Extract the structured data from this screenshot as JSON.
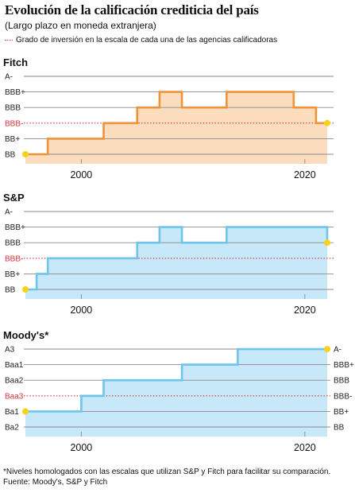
{
  "title": "Evolución de la calificación crediticia del país",
  "subtitle": "(Largo plazo en moneda extranjera)",
  "legend": "Grado de inversión en la escala de cada una de las agencias calificadoras",
  "footnote": {
    "line1": "*Niveles homologados con las escalas que utilizan S&P y Fitch para facilitar su comparación.",
    "line2": "Fuente: Moody's, S&P y Fitch"
  },
  "colors": {
    "fitch_line": "#f0923a",
    "fitch_fill": "#fbdcbd",
    "sp_line": "#6ec4ea",
    "sp_fill": "#c6e8f8",
    "moodys_line": "#6ec4ea",
    "moodys_fill": "#c6e8f8",
    "investment_grade": "#d6333b",
    "endpoint": "#f6d31a",
    "gridline": "#8a8a8a"
  },
  "chart_data": [
    {
      "type": "line",
      "step": true,
      "agency": "Fitch",
      "title": "Fitch",
      "categories": [
        "BB",
        "BB+",
        "BBB-",
        "BBB",
        "BBB+",
        "A-"
      ],
      "investment_grade_threshold": "BBB-",
      "xlim": [
        1995,
        2022
      ],
      "xticks": [
        "2000",
        "2020"
      ],
      "x": [
        1995,
        1997,
        2000,
        2002,
        2005,
        2007,
        2009,
        2013,
        2019,
        2021,
        2022
      ],
      "y": [
        "BB",
        "BB+",
        "BB+",
        "BBB-",
        "BBB",
        "BBB+",
        "BBB",
        "BBB+",
        "BBB",
        "BBB-",
        "BBB-"
      ]
    },
    {
      "type": "line",
      "step": true,
      "agency": "S&P",
      "title": "S&P",
      "categories": [
        "BB",
        "BB+",
        "BBB-",
        "BBB",
        "BBB+",
        "A-"
      ],
      "investment_grade_threshold": "BBB-",
      "xlim": [
        1995,
        2022
      ],
      "xticks": [
        "2000",
        "2020"
      ],
      "x": [
        1995,
        1996,
        1997,
        2002,
        2005,
        2007,
        2009,
        2013,
        2022
      ],
      "y": [
        "BB",
        "BB+",
        "BBB-",
        "BBB-",
        "BBB",
        "BBB+",
        "BBB",
        "BBB+",
        "BBB"
      ]
    },
    {
      "type": "line",
      "step": true,
      "agency": "Moody's",
      "title": "Moody's*",
      "categories": [
        "Ba2",
        "Ba1",
        "Baa3",
        "Baa2",
        "Baa1",
        "A3"
      ],
      "right_categories": [
        "BB",
        "BB+",
        "BBB-",
        "BBB",
        "BBB+",
        "A-"
      ],
      "investment_grade_threshold": "Baa3",
      "xlim": [
        1995,
        2022
      ],
      "xticks": [
        "2000",
        "2020"
      ],
      "x": [
        1995,
        2000,
        2002,
        2009,
        2014,
        2022
      ],
      "y": [
        "Ba1",
        "Baa3",
        "Baa2",
        "Baa1",
        "A3",
        "A3"
      ]
    }
  ]
}
